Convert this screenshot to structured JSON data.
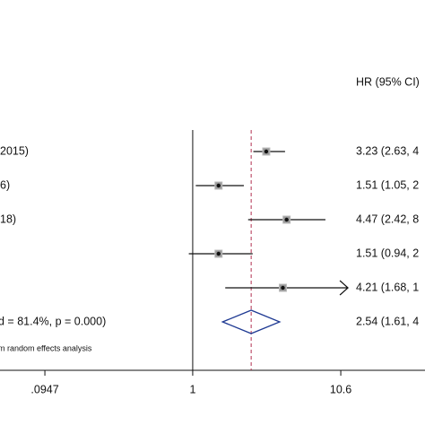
{
  "chart_data": {
    "type": "forest",
    "header": "HR (95% CI)",
    "log_scale": true,
    "xlim": [
      0.0463,
      40.6
    ],
    "xticks": [
      {
        "value": 0.0947,
        "label": ".0947"
      },
      1,
      10.6
    ],
    "studies": [
      {
        "label": "2015)",
        "hr": 3.23,
        "lower": 2.63,
        "upper": 4.36,
        "value_label": "3.23 (2.63, 4"
      },
      {
        "label": "6)",
        "hr": 1.51,
        "lower": 1.05,
        "upper": 2.26,
        "value_label": "1.51 (1.05, 2"
      },
      {
        "label": "18)",
        "hr": 4.47,
        "lower": 2.42,
        "upper": 8.3,
        "value_label": "4.47 (2.42, 8"
      },
      {
        "label": null,
        "hr": 1.51,
        "lower": 0.94,
        "upper": 2.6,
        "value_label": "1.51 (0.94, 2"
      },
      {
        "label": null,
        "hr": 4.21,
        "lower": 1.68,
        "upper": 10.6,
        "value_label": "4.21 (1.68, 1"
      }
    ],
    "summary": {
      "label": "d = 81.4%, p = 0.000)",
      "hr": 2.54,
      "lower": 1.61,
      "upper": 4.0,
      "value_label": "2.54 (1.61, 4"
    },
    "footnote": "m random effects analysis",
    "color_points": "#111111",
    "color_summary": "#1f3a93",
    "color_reference": "#b03050"
  }
}
